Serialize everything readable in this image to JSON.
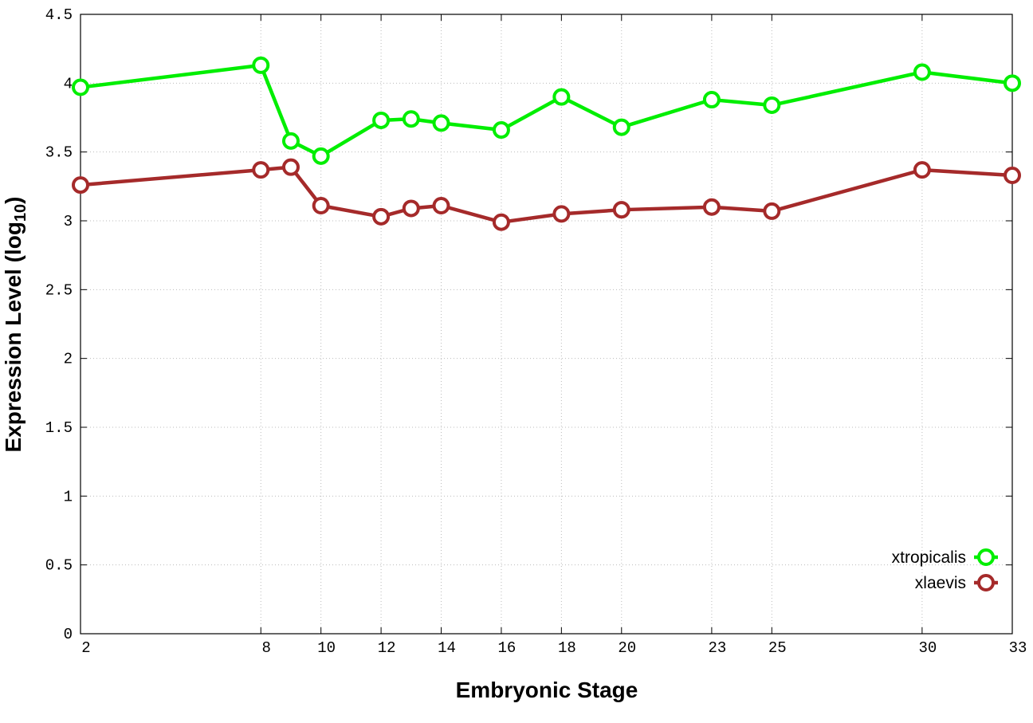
{
  "chart_data": {
    "type": "line",
    "x_label": "Embryonic Stage",
    "y_label": [
      "Expression Level (log",
      "10",
      ")"
    ],
    "x": [
      2,
      8,
      9,
      10,
      12,
      13,
      14,
      16,
      18,
      20,
      23,
      25,
      30,
      33
    ],
    "series": [
      {
        "name": "xtropicalis",
        "color": "#00ee00",
        "values": [
          3.97,
          4.13,
          3.58,
          3.47,
          3.73,
          3.74,
          3.71,
          3.66,
          3.9,
          3.68,
          3.88,
          3.84,
          4.08,
          4.0
        ]
      },
      {
        "name": "xlaevis",
        "color": "#a52a2a",
        "values": [
          3.26,
          3.37,
          3.39,
          3.11,
          3.03,
          3.09,
          3.11,
          2.99,
          3.05,
          3.08,
          3.1,
          3.07,
          3.37,
          3.33
        ]
      }
    ],
    "xlim": [
      2,
      33
    ],
    "xticks": [
      2,
      8,
      10,
      12,
      14,
      16,
      18,
      20,
      23,
      25,
      30,
      33
    ],
    "ylim": [
      0,
      4.5
    ],
    "yticks": [
      0,
      0.5,
      1,
      1.5,
      2,
      2.5,
      3,
      3.5,
      4,
      4.5
    ],
    "grid": true,
    "legend": "bottom-right"
  }
}
